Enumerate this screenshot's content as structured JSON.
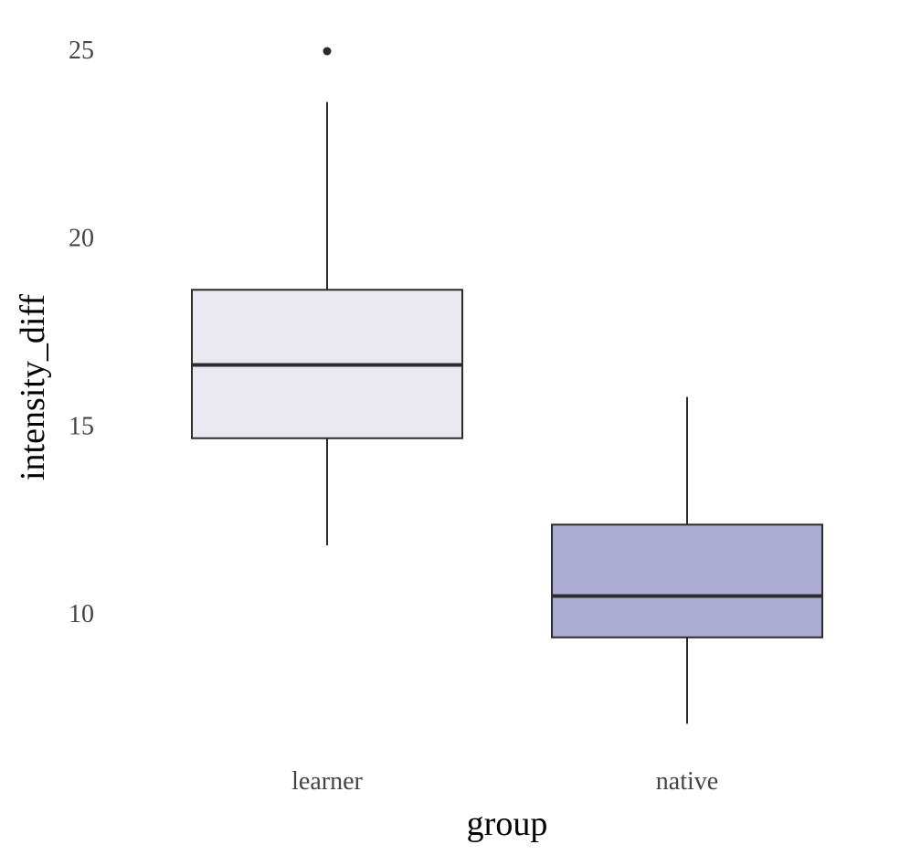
{
  "chart_data": {
    "type": "boxplot",
    "title": "",
    "xlabel": "group",
    "ylabel": "intensity_diff",
    "categories": [
      "learner",
      "native"
    ],
    "yticks": [
      10,
      15,
      20,
      25
    ],
    "ylim": [
      6.5,
      26
    ],
    "grid": false,
    "legend": "none",
    "boxes": [
      {
        "group": "learner",
        "whisker_low": 11.8,
        "q1": 14.65,
        "median": 16.6,
        "q3": 18.6,
        "whisker_high": 23.6,
        "outliers": [
          24.95
        ],
        "color": "#EAE8F1"
      },
      {
        "group": "native",
        "whisker_low": 7.05,
        "q1": 9.35,
        "median": 10.45,
        "q3": 12.35,
        "whisker_high": 15.75,
        "outliers": [],
        "color": "#ADADD4"
      }
    ]
  }
}
